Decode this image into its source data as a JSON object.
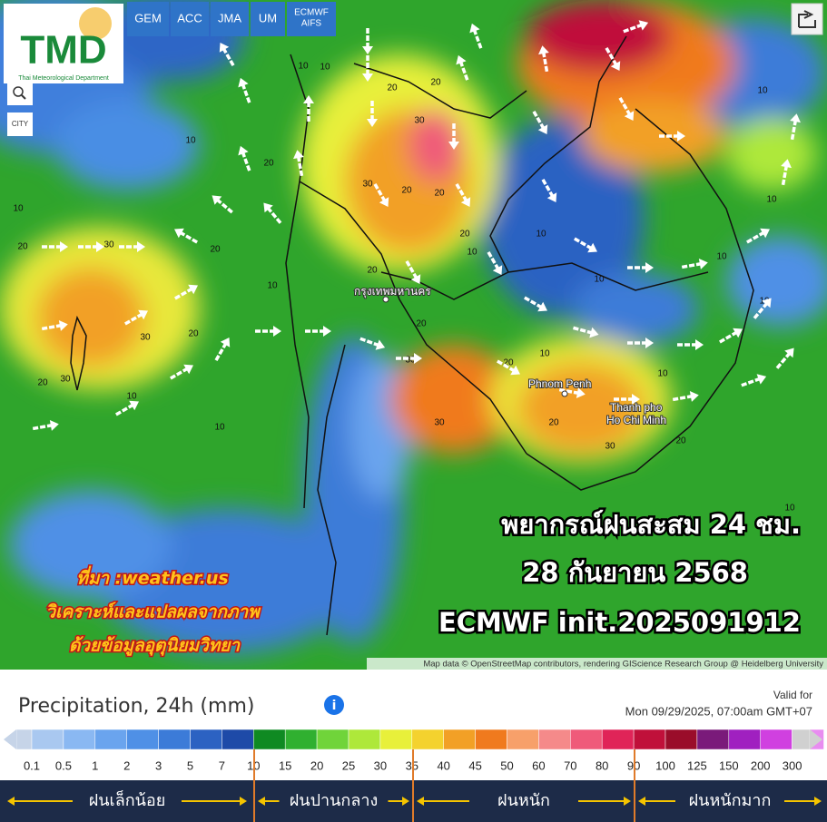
{
  "logo": {
    "title": "TMD",
    "subtitle": "Thai Meteorological Department"
  },
  "models": [
    "GEM",
    "ACC",
    "JMA",
    "UM"
  ],
  "ecmwf_button": [
    "ECMWF",
    "AIFS"
  ],
  "city_toggle": "CITY",
  "headline": [
    "พยากรณ์ฝนสะสม 24 ชม.",
    "28 กันยายน 2568",
    "ECMWF init.2025091912"
  ],
  "source": [
    "ที่มา :weather.us",
    "วิเคราะห์และแปลผลจากภาพ",
    "ด้วยข้อมูลอุตุนิยมวิทยา"
  ],
  "places": [
    "กรุงเทพมหานคร",
    "Phnom Penh",
    "Thanh pho",
    "Ho Chi Minh"
  ],
  "attribution": "Map data © OpenStreetMap contributors, rendering GIScience Research Group @ Heidelberg University",
  "contour_labels": [
    10,
    10,
    20,
    20,
    10,
    10,
    20,
    30,
    30,
    20,
    20,
    30,
    10,
    10,
    10,
    20,
    20,
    30,
    30,
    20,
    20,
    20,
    10,
    20,
    20,
    30,
    30,
    10,
    10,
    10,
    10,
    10,
    10,
    30,
    20,
    10,
    10,
    20,
    20,
    10
  ],
  "legend": {
    "title": "Precipitation, 24h (mm)",
    "info": "i",
    "valid_label": "Valid for",
    "valid_time": "Mon 09/29/2025, 07:00am GMT+07",
    "scale": [
      0.1,
      0.5,
      1,
      2,
      3,
      5,
      7,
      10,
      15,
      20,
      25,
      30,
      35,
      40,
      45,
      50,
      60,
      70,
      80,
      90,
      100,
      125,
      150,
      200,
      300
    ],
    "colors": [
      "#c6d4e8",
      "#a9c8f0",
      "#8ab8f2",
      "#6aa4ee",
      "#4f90e6",
      "#3c7bd8",
      "#2c62c2",
      "#1e4aa8",
      "#0f8a22",
      "#30b030",
      "#70d43a",
      "#aee83a",
      "#e8f03a",
      "#f4d22e",
      "#f2a026",
      "#f07a1e",
      "#f7a06a",
      "#f58a8a",
      "#ef5a7a",
      "#e02458",
      "#c0103a",
      "#9a0d2a",
      "#7a1a7a",
      "#a020c0",
      "#d040e0",
      "#e88cf0",
      "#d0d0d0"
    ],
    "categories": [
      "ฝนเล็กน้อย",
      "ฝนปานกลาง",
      "ฝนหนัก",
      "ฝนหนักมาก"
    ]
  }
}
